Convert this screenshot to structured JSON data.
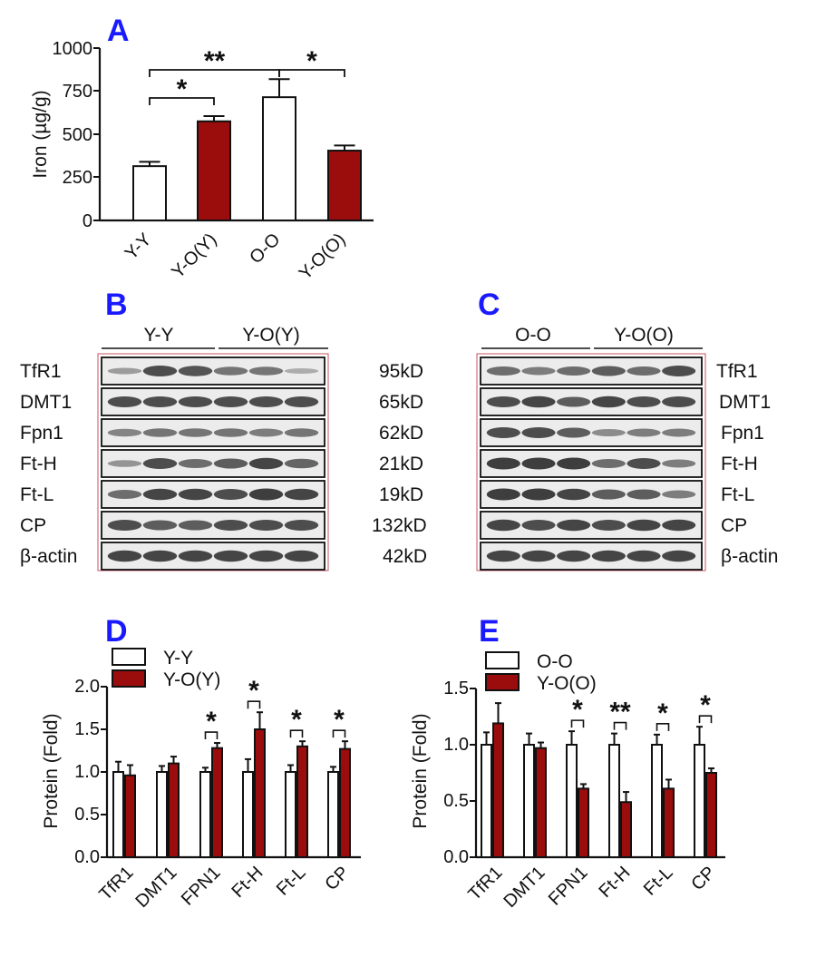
{
  "colors": {
    "open": "#ffffff",
    "filled": "#9b0d0d",
    "accent": "#1a1aff",
    "frame": "#c9505f"
  },
  "chart_data": [
    {
      "panel": "A",
      "type": "bar",
      "ylabel": "Iron (µg/g)",
      "ylim": [
        0,
        1000
      ],
      "yticks": [
        "0",
        "250",
        "500",
        "750",
        "1000"
      ],
      "categories": [
        "Y-Y",
        "Y-O(Y)",
        "O-O",
        "Y-O(O)"
      ],
      "values": [
        315,
        575,
        715,
        405
      ],
      "errors": [
        25,
        30,
        105,
        30
      ],
      "fills": [
        "open",
        "filled",
        "open",
        "filled"
      ],
      "significance": [
        {
          "from": 0,
          "to": 1,
          "label": "*"
        },
        {
          "from": 0,
          "to": 2,
          "label": "**"
        },
        {
          "from": 2,
          "to": 3,
          "label": "*"
        }
      ]
    },
    {
      "panel": "B",
      "type": "western-blot",
      "groups": [
        "Y-Y",
        "Y-O(Y)"
      ],
      "proteins": [
        "TfR1",
        "DMT1",
        "Fpn1",
        "Ft-H",
        "Ft-L",
        "CP",
        "β-actin"
      ],
      "sizes": [
        "95kD",
        "65kD",
        "62kD",
        "21kD",
        "19kD",
        "132kD",
        "42kD"
      ],
      "intensities": [
        [
          0.3,
          0.8,
          0.75,
          0.55,
          0.55,
          0.2
        ],
        [
          0.8,
          0.8,
          0.8,
          0.8,
          0.8,
          0.8
        ],
        [
          0.45,
          0.55,
          0.55,
          0.55,
          0.5,
          0.55
        ],
        [
          0.35,
          0.8,
          0.6,
          0.7,
          0.85,
          0.65
        ],
        [
          0.6,
          0.85,
          0.85,
          0.8,
          0.9,
          0.85
        ],
        [
          0.8,
          0.7,
          0.7,
          0.8,
          0.8,
          0.8
        ],
        [
          0.85,
          0.85,
          0.85,
          0.85,
          0.85,
          0.85
        ]
      ]
    },
    {
      "panel": "C",
      "type": "western-blot",
      "groups": [
        "O-O",
        "Y-O(O)"
      ],
      "proteins": [
        "TfR1",
        "DMT1",
        "Fpn1",
        "Ft-H",
        "Ft-L",
        "CP",
        "β-actin"
      ],
      "intensities": [
        [
          0.6,
          0.5,
          0.6,
          0.7,
          0.6,
          0.8
        ],
        [
          0.8,
          0.85,
          0.7,
          0.85,
          0.8,
          0.8
        ],
        [
          0.8,
          0.8,
          0.7,
          0.4,
          0.5,
          0.5
        ],
        [
          0.9,
          0.9,
          0.9,
          0.6,
          0.8,
          0.5
        ],
        [
          0.9,
          0.9,
          0.85,
          0.7,
          0.7,
          0.5
        ],
        [
          0.85,
          0.8,
          0.85,
          0.8,
          0.85,
          0.85
        ],
        [
          0.85,
          0.85,
          0.85,
          0.85,
          0.85,
          0.85
        ]
      ]
    },
    {
      "panel": "D",
      "type": "bar",
      "ylabel": "Protein (Fold)",
      "ylim": [
        0,
        2.0
      ],
      "yticks": [
        "0.0",
        "0.5",
        "1.0",
        "1.5",
        "2.0"
      ],
      "categories": [
        "TfR1",
        "DMT1",
        "FPN1",
        "Ft-H",
        "Ft-L",
        "CP"
      ],
      "series": [
        {
          "name": "Y-Y",
          "fill": "open",
          "values": [
            1.0,
            1.0,
            1.0,
            1.0,
            1.0,
            1.0
          ],
          "errors": [
            0.12,
            0.07,
            0.05,
            0.15,
            0.08,
            0.06
          ]
        },
        {
          "name": "Y-O(Y)",
          "fill": "filled",
          "values": [
            0.96,
            1.1,
            1.28,
            1.5,
            1.3,
            1.27
          ],
          "errors": [
            0.12,
            0.08,
            0.06,
            0.2,
            0.06,
            0.09
          ]
        }
      ],
      "significance": [
        "",
        "",
        "*",
        "*",
        "*",
        "*"
      ]
    },
    {
      "panel": "E",
      "type": "bar",
      "ylabel": "Protein (Fold)",
      "ylim": [
        0,
        1.5
      ],
      "yticks": [
        "0.0",
        "0.5",
        "1.0",
        "1.5"
      ],
      "categories": [
        "TfR1",
        "DMT1",
        "FPN1",
        "Ft-H",
        "Ft-L",
        "CP"
      ],
      "series": [
        {
          "name": "O-O",
          "fill": "open",
          "values": [
            1.0,
            1.0,
            1.0,
            1.0,
            1.0,
            1.0
          ],
          "errors": [
            0.11,
            0.1,
            0.12,
            0.1,
            0.09,
            0.16
          ]
        },
        {
          "name": "Y-O(O)",
          "fill": "filled",
          "values": [
            1.19,
            0.97,
            0.61,
            0.49,
            0.61,
            0.75
          ],
          "errors": [
            0.18,
            0.05,
            0.04,
            0.09,
            0.08,
            0.04
          ]
        }
      ],
      "significance": [
        "",
        "",
        "*",
        "**",
        "*",
        "*"
      ]
    }
  ]
}
